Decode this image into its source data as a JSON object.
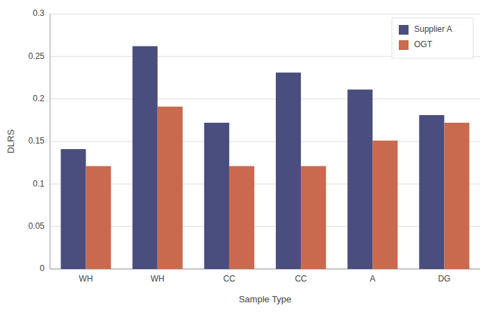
{
  "chart_data": {
    "type": "bar",
    "categories": [
      "WH",
      "WH",
      "CC",
      "CC",
      "A",
      "DG"
    ],
    "series": [
      {
        "name": "Supplier A",
        "color": "#4a4e7e",
        "values": [
          0.141,
          0.262,
          0.172,
          0.231,
          0.211,
          0.181
        ]
      },
      {
        "name": "OGT",
        "color": "#c96a4e",
        "values": [
          0.121,
          0.191,
          0.121,
          0.121,
          0.151,
          0.172
        ]
      }
    ],
    "xlabel": "Sample Type",
    "ylabel": "DLRS",
    "ylim": [
      0,
      0.3
    ],
    "yticks": [
      0,
      0.05,
      0.1,
      0.15,
      0.2,
      0.25,
      0.3
    ],
    "grid": true,
    "legend": "upper right"
  }
}
